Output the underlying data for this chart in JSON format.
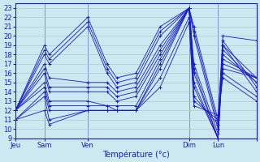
{
  "xlabel": "Température (°c)",
  "background_color": "#cce8f0",
  "line_color": "#1a1acc",
  "grid_color": "#aacccc",
  "ylim": [
    9,
    23.5
  ],
  "yticks": [
    9,
    10,
    11,
    12,
    13,
    14,
    15,
    16,
    17,
    18,
    19,
    20,
    21,
    22,
    23
  ],
  "day_tick_positions": [
    0.0,
    0.12,
    0.3,
    0.72,
    0.84,
    1.0
  ],
  "day_tick_labels": [
    "Jeu",
    "Sam",
    "Ven",
    "Dim",
    "Lun",
    ""
  ],
  "xlim": [
    0.0,
    1.0
  ],
  "series": [
    {
      "x": [
        0.0,
        0.12,
        0.14,
        0.3,
        0.38,
        0.42,
        0.5,
        0.6,
        0.72,
        0.74,
        0.84,
        0.86,
        1.0
      ],
      "y": [
        12.0,
        19.0,
        18.0,
        22.0,
        17.0,
        15.5,
        16.0,
        21.0,
        23.0,
        21.0,
        11.0,
        20.0,
        19.5
      ]
    },
    {
      "x": [
        0.0,
        0.12,
        0.14,
        0.3,
        0.38,
        0.42,
        0.5,
        0.6,
        0.72,
        0.74,
        0.84,
        0.86,
        1.0
      ],
      "y": [
        12.0,
        18.5,
        17.5,
        21.5,
        16.5,
        15.0,
        15.5,
        20.5,
        23.0,
        20.5,
        10.5,
        19.5,
        14.5
      ]
    },
    {
      "x": [
        0.0,
        0.12,
        0.14,
        0.3,
        0.38,
        0.42,
        0.5,
        0.6,
        0.72,
        0.74,
        0.84,
        0.86,
        1.0
      ],
      "y": [
        12.0,
        18.0,
        17.0,
        21.0,
        16.0,
        14.5,
        15.0,
        20.0,
        23.0,
        20.0,
        10.0,
        19.0,
        14.0
      ]
    },
    {
      "x": [
        0.0,
        0.12,
        0.14,
        0.3,
        0.38,
        0.42,
        0.5,
        0.6,
        0.72,
        0.74,
        0.84,
        0.86,
        1.0
      ],
      "y": [
        12.0,
        17.0,
        15.5,
        15.0,
        15.0,
        14.0,
        14.5,
        19.0,
        23.0,
        17.0,
        9.5,
        19.0,
        15.5
      ]
    },
    {
      "x": [
        0.0,
        0.12,
        0.14,
        0.3,
        0.38,
        0.42,
        0.5,
        0.6,
        0.72,
        0.74,
        0.84,
        0.86,
        1.0
      ],
      "y": [
        12.0,
        16.5,
        14.5,
        14.5,
        14.5,
        13.5,
        14.0,
        18.5,
        23.0,
        16.5,
        9.0,
        18.5,
        15.0
      ]
    },
    {
      "x": [
        0.0,
        0.12,
        0.14,
        0.3,
        0.38,
        0.42,
        0.5,
        0.6,
        0.72,
        0.74,
        0.84,
        0.86,
        1.0
      ],
      "y": [
        12.0,
        16.0,
        14.0,
        14.0,
        14.0,
        13.0,
        13.5,
        18.0,
        23.0,
        16.0,
        9.0,
        18.0,
        15.0
      ]
    },
    {
      "x": [
        0.0,
        0.12,
        0.14,
        0.3,
        0.38,
        0.42,
        0.5,
        0.6,
        0.72,
        0.74,
        0.84,
        0.86,
        1.0
      ],
      "y": [
        12.0,
        15.0,
        13.0,
        13.0,
        12.5,
        12.5,
        12.5,
        17.5,
        23.0,
        15.0,
        9.0,
        17.5,
        15.5
      ]
    },
    {
      "x": [
        0.0,
        0.12,
        0.14,
        0.3,
        0.38,
        0.42,
        0.5,
        0.6,
        0.72,
        0.74,
        0.84,
        0.86,
        1.0
      ],
      "y": [
        12.0,
        14.5,
        12.5,
        12.5,
        12.5,
        12.0,
        12.0,
        17.0,
        23.0,
        14.5,
        9.0,
        17.0,
        15.5
      ]
    },
    {
      "x": [
        0.0,
        0.12,
        0.14,
        0.3,
        0.38,
        0.42,
        0.5,
        0.6,
        0.72,
        0.74,
        0.84,
        0.86,
        1.0
      ],
      "y": [
        11.0,
        14.0,
        12.0,
        12.0,
        12.0,
        12.0,
        12.0,
        16.5,
        23.0,
        13.5,
        10.5,
        16.5,
        15.5
      ]
    },
    {
      "x": [
        0.0,
        0.12,
        0.14,
        0.3,
        0.38,
        0.42,
        0.5,
        0.6,
        0.72,
        0.74,
        0.84,
        0.86,
        1.0
      ],
      "y": [
        11.0,
        13.5,
        11.0,
        12.0,
        12.0,
        12.0,
        12.0,
        15.5,
        22.0,
        13.0,
        11.0,
        16.0,
        13.5
      ]
    },
    {
      "x": [
        0.0,
        0.12,
        0.14,
        0.3,
        0.38,
        0.42,
        0.5,
        0.6,
        0.72,
        0.74,
        0.84,
        0.86,
        1.0
      ],
      "y": [
        11.0,
        12.0,
        10.5,
        12.0,
        12.0,
        12.0,
        12.0,
        14.5,
        21.5,
        12.5,
        11.5,
        15.5,
        13.0
      ]
    }
  ],
  "vlines": [
    0.0,
    0.12,
    0.3,
    0.72,
    0.84
  ]
}
